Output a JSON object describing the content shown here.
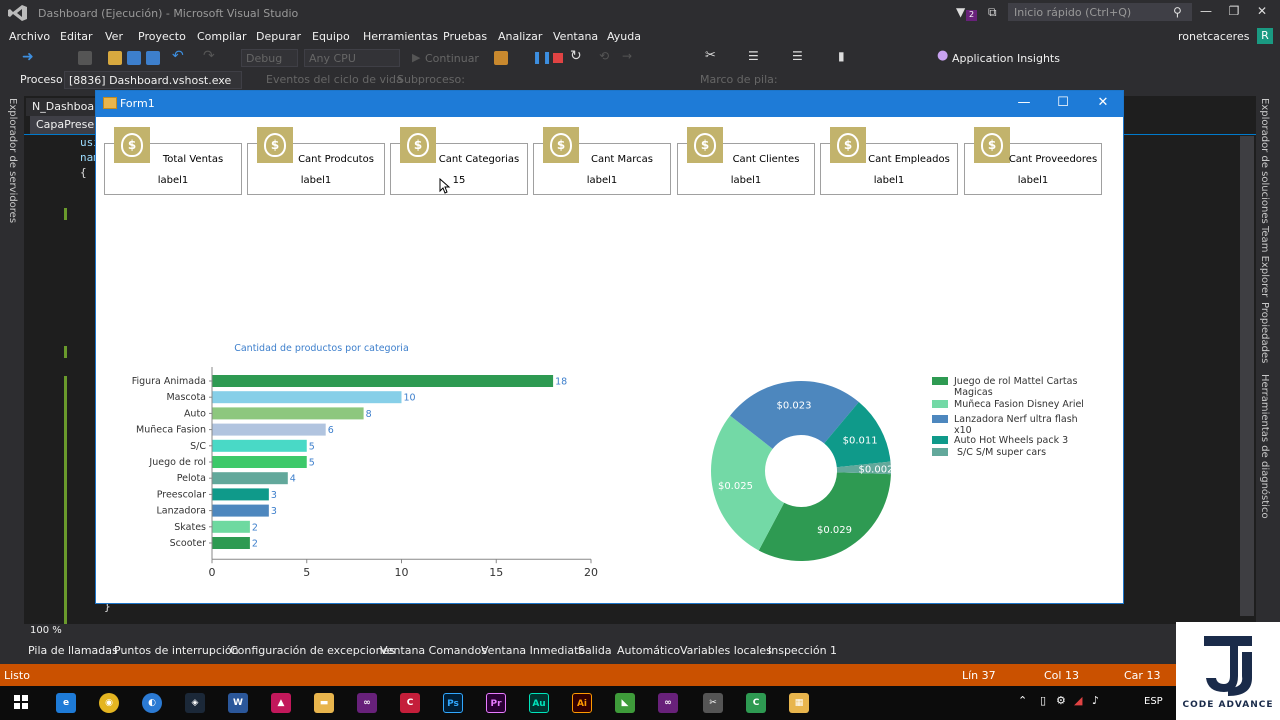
{
  "vs": {
    "window_title": "Dashboard (Ejecución) - Microsoft Visual Studio",
    "quick_launch": "Inicio rápido (Ctrl+Q)",
    "notification_count": "2",
    "menu": [
      "Archivo",
      "Editar",
      "Ver",
      "Proyecto",
      "Compilar",
      "Depurar",
      "Equipo",
      "Herramientas",
      "Pruebas",
      "Analizar",
      "Ventana",
      "Ayuda"
    ],
    "user": "ronetcaceres",
    "avatar_letter": "R",
    "toolbar": {
      "config": "Debug",
      "platform": "Any CPU",
      "continue": "Continuar",
      "app_insights": "Application Insights"
    },
    "process_label": "Proceso:",
    "process_value": "[8836] Dashboard.vshost.exe",
    "lifecycle": "Eventos del ciclo de vida",
    "thread": "Subproceso:",
    "stack_frame": "Marco de pila:",
    "left_tab": "Explorador de servidores",
    "right_tabs": [
      "Explorador de soluciones",
      "Team Explorer",
      "Propiedades",
      "Herramientas de diagnóstico"
    ],
    "doc_tabs": [
      "N_Dashboard",
      "CapaPrese"
    ],
    "code_fragments": [
      "usi",
      "nam",
      "{",
      "}"
    ],
    "zoom": "100 %",
    "tool_tabs": [
      "Pila de llamadas",
      "Puntos de interrupción",
      "Configuración de excepciones",
      "Ventana Comandos",
      "Ventana Inmediato",
      "Salida",
      "Automático",
      "Variables locales",
      "Inspección 1"
    ],
    "status": {
      "ready": "Listo",
      "line": "Lín 37",
      "col": "Col 13",
      "char": "Car 13"
    },
    "taskbar_lang": "ESP",
    "taskbar_apps": [
      "Ps",
      "Pr",
      "Au",
      "Ai"
    ]
  },
  "form": {
    "title": "Form1",
    "cards": [
      {
        "label": "Total Ventas",
        "value": "label1"
      },
      {
        "label": "Cant Prodcutos",
        "value": "label1"
      },
      {
        "label": "Cant Categorias",
        "value": "15"
      },
      {
        "label": "Cant Marcas",
        "value": "label1"
      },
      {
        "label": "Cant Clientes",
        "value": "label1"
      },
      {
        "label": "Cant Empleados",
        "value": "label1"
      },
      {
        "label": "Cant Proveedores",
        "value": "label1"
      }
    ],
    "money_symbol": "$"
  },
  "watermark": "CODE ADVANCE",
  "chart_data": [
    {
      "type": "bar",
      "orientation": "horizontal",
      "title": "Cantidad de productos por categoria",
      "categories": [
        "Figura Animada",
        "Mascota",
        "Auto",
        "Muñeca Fasion",
        "S/C",
        "Juego de rol",
        "Pelota",
        "Preescolar",
        "Lanzadora",
        "Skates",
        "Scooter"
      ],
      "values": [
        18,
        10,
        8,
        6,
        5,
        5,
        4,
        3,
        3,
        2,
        2
      ],
      "colors": [
        "#2e9a52",
        "#87cfe8",
        "#8dc77e",
        "#b1c4df",
        "#49d9c6",
        "#3dc96a",
        "#62a89b",
        "#0f9a8a",
        "#4d87be",
        "#6ed9a0",
        "#2e9a52"
      ],
      "xlim": [
        0,
        20
      ],
      "xticks": [
        0,
        5,
        10,
        15,
        20
      ],
      "grid": false,
      "data_labels": true
    },
    {
      "type": "pie",
      "donut": true,
      "labels": [
        "Juego de rol Mattel Cartas Magicas",
        "Muñeca Fasion Disney Ariel",
        "Lanzadora Nerf ultra flash x10",
        "Auto Hot Wheels pack 3",
        " S/C  S/M super cars"
      ],
      "values": [
        0.029,
        0.025,
        0.023,
        0.011,
        0.002
      ],
      "value_labels": [
        "$0.029",
        "$0.025",
        "$0.023",
        "$0.011",
        "$0.002"
      ],
      "colors": [
        "#2e9a52",
        "#73d9a6",
        "#4d87be",
        "#0f9a8a",
        "#62a89b"
      ],
      "legend_position": "right"
    }
  ]
}
